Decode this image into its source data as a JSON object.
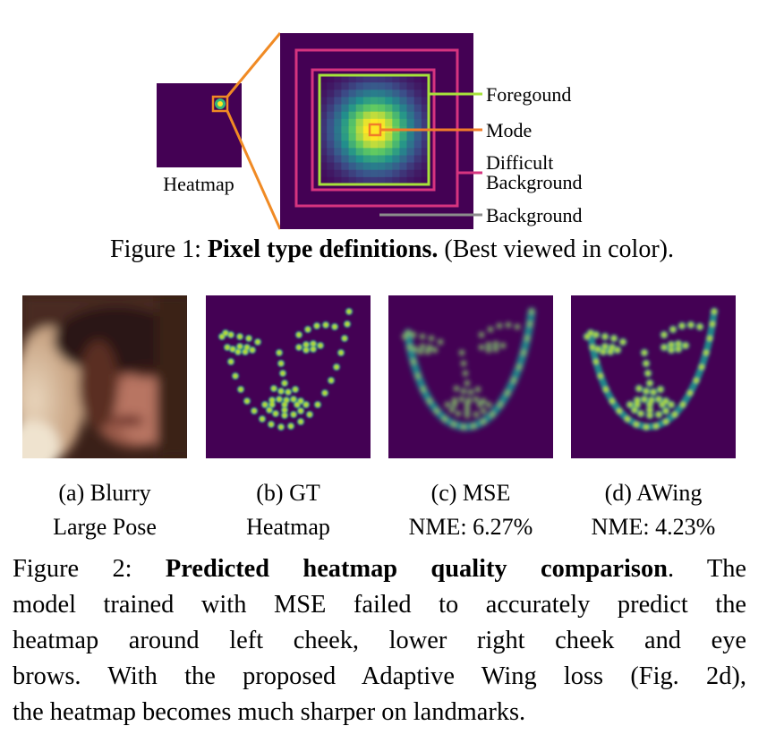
{
  "figure1": {
    "heatmap_label": "Heatmap",
    "legend": {
      "foreground": "Foregound",
      "mode": "Mode",
      "difficult_line1": "Difficult",
      "difficult_line2": "Background",
      "background": "Background"
    },
    "colors": {
      "foreground": "#a6e33a",
      "mode": "#f07c2a",
      "difficult_background": "#d6347f",
      "background": "#8c8c8c",
      "zoom_lines": "#f08a24",
      "heatmap_bg": "#440154"
    },
    "caption": {
      "prefix": "Figure 1: ",
      "bold": "Pixel type definitions.",
      "suffix": " (Best viewed in color)."
    }
  },
  "figure2": {
    "panels": [
      {
        "id": "a",
        "line1": "(a) Blurry",
        "line2": "Large Pose"
      },
      {
        "id": "b",
        "line1": "(b) GT",
        "line2": "Heatmap"
      },
      {
        "id": "c",
        "line1": "(c) MSE",
        "line2": "NME: 6.27%"
      },
      {
        "id": "d",
        "line1": "(d) AWing",
        "line2": "NME: 4.23%"
      }
    ],
    "caption": {
      "prefix": "Figure 2: ",
      "bold": "Predicted heatmap quality comparison",
      "line1_rest": ". The",
      "line2": "model trained with MSE failed to accurately predict the",
      "line3": "heatmap around left cheek, lower right cheek and eye",
      "line4": "brows. With the proposed Adaptive Wing loss (Fig. 2d),",
      "line5": "the heatmap becomes much sharper on landmarks."
    }
  }
}
